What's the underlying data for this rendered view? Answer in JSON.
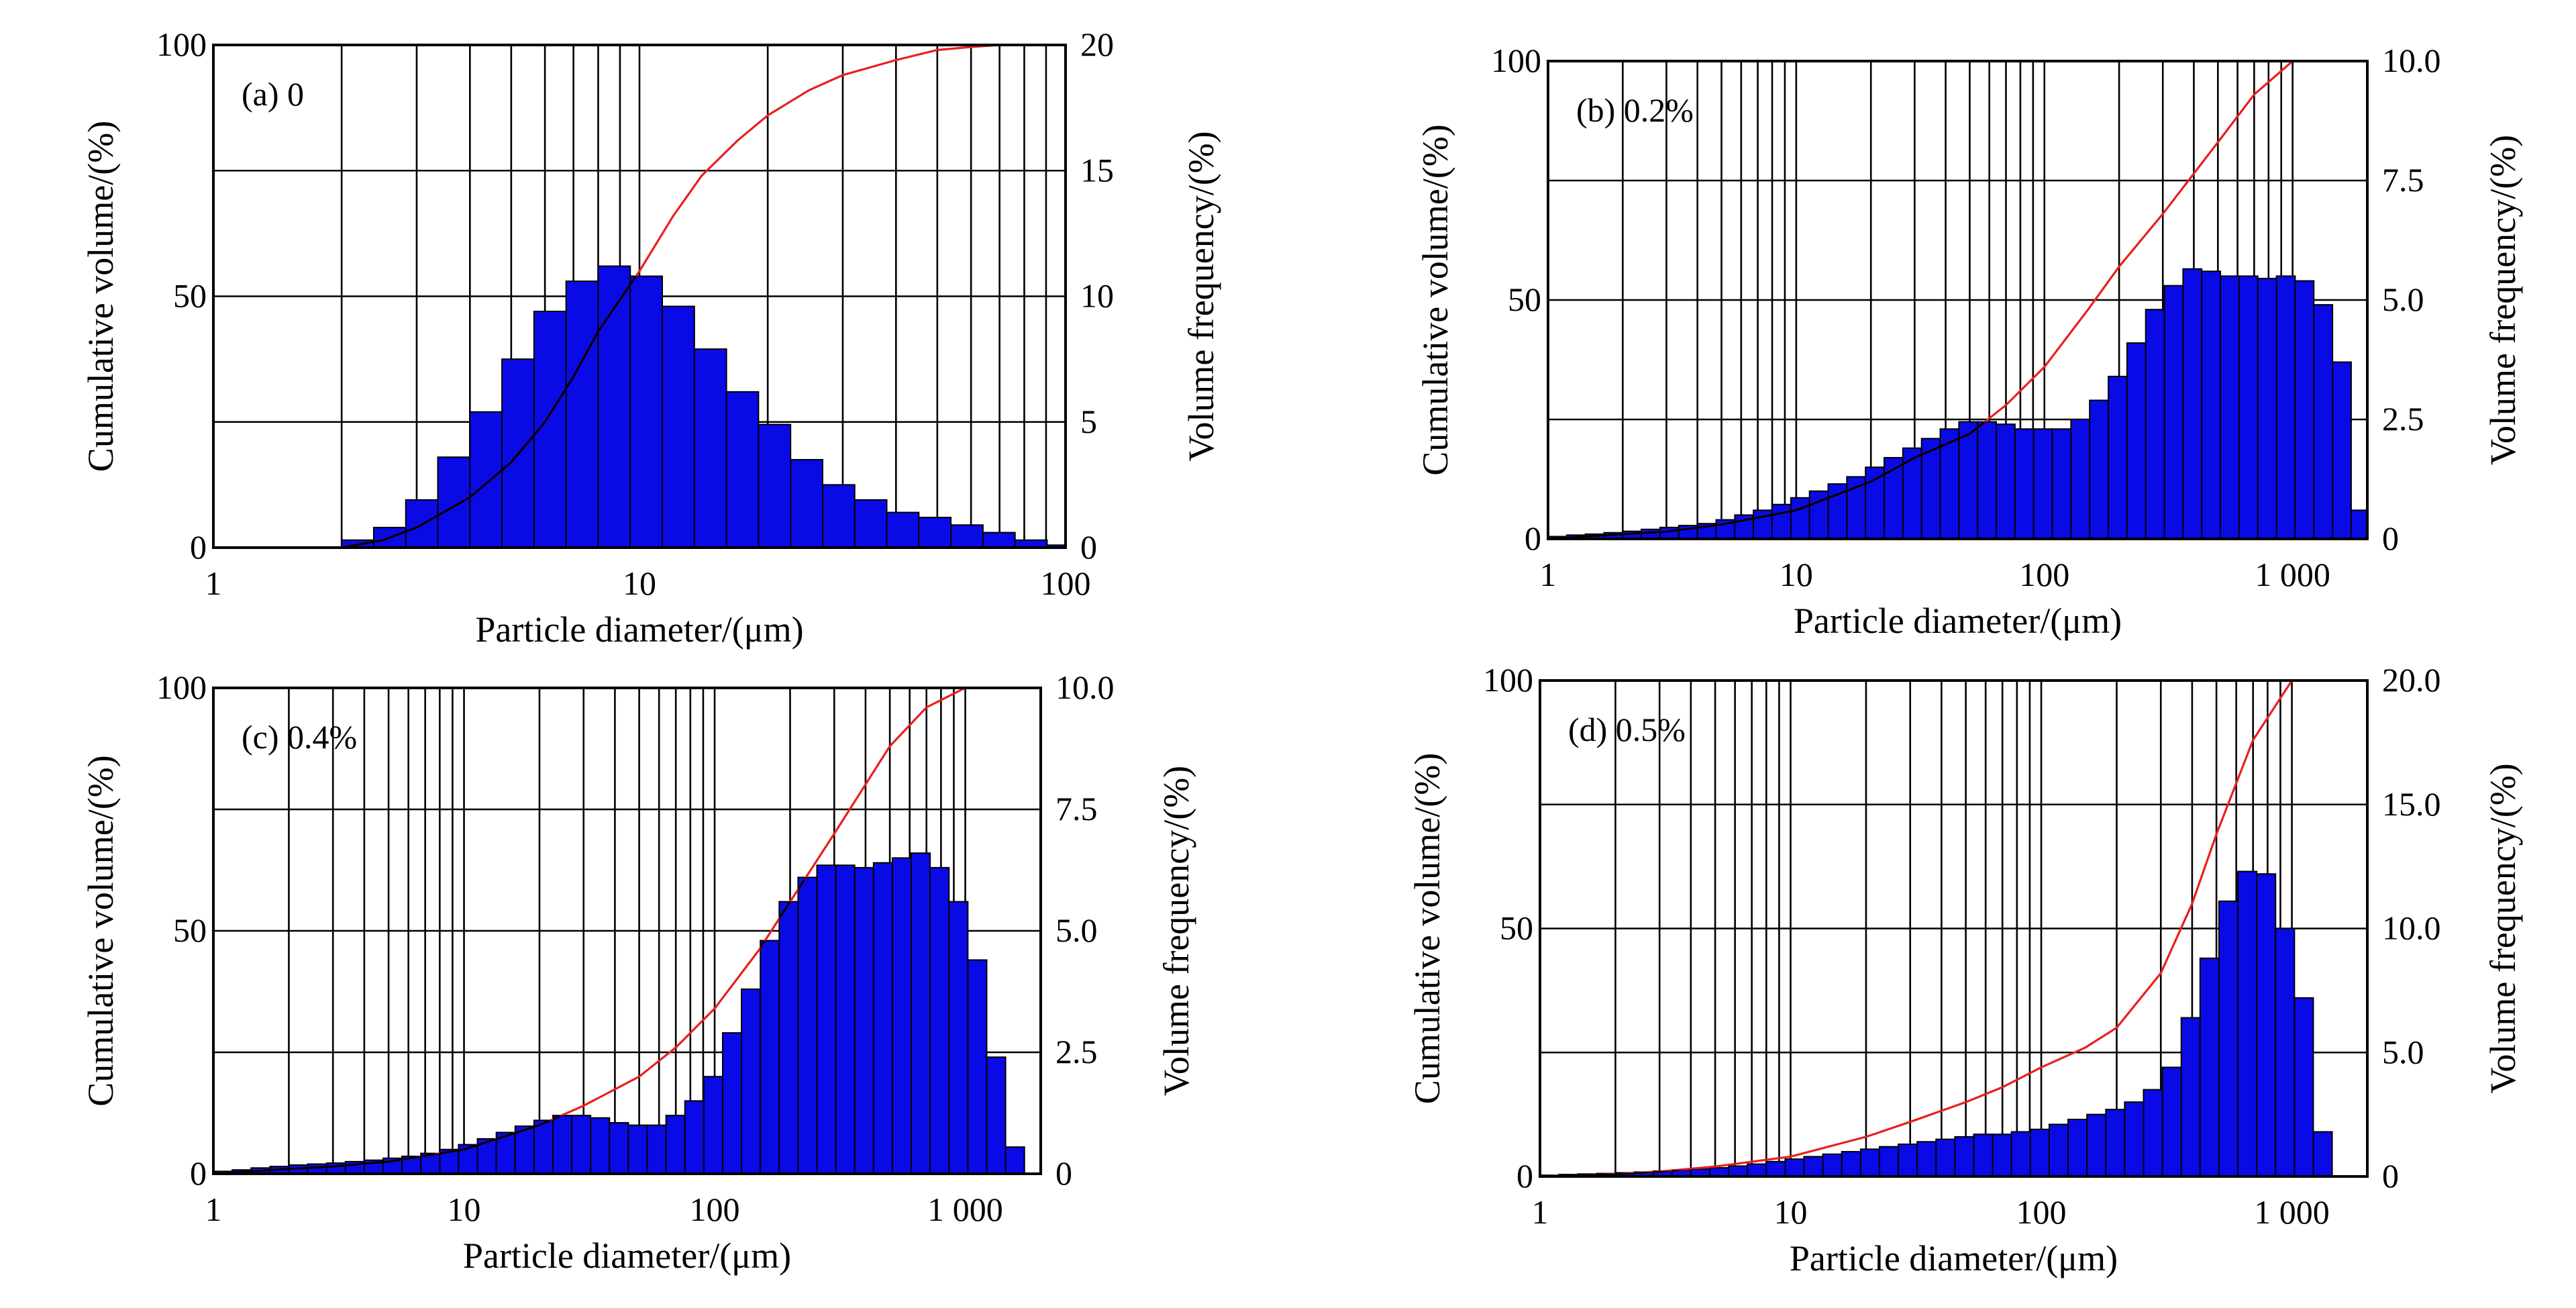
{
  "chart_data": [
    {
      "type": "bar",
      "panel_label": "(a) 0",
      "xlabel": "Particle diameter/(μm)",
      "ylabel_left": "Cumulative volume/(%)",
      "ylabel_right": "Volume frequency/(%)",
      "x_scale": "log",
      "xlim": [
        1,
        100
      ],
      "x_ticks": [
        1,
        10,
        100
      ],
      "x_tick_labels": [
        "1",
        "10",
        "100"
      ],
      "y_left_lim": [
        0,
        100
      ],
      "y_left_ticks": [
        0,
        50,
        100
      ],
      "y_left_tick_labels": [
        "0",
        "50",
        "100"
      ],
      "y_right_lim": [
        0,
        20
      ],
      "y_right_ticks": [
        0,
        5,
        10,
        15,
        20
      ],
      "y_right_tick_labels": [
        "0",
        "5",
        "10",
        "15",
        "20"
      ],
      "grid": true,
      "bin_start": 2.0,
      "bin_ratio": 1.1892,
      "series": [
        {
          "name": "Volume frequency (%)",
          "axis": "right",
          "values": [
            0.3,
            0.8,
            1.9,
            3.6,
            5.4,
            7.5,
            9.4,
            10.6,
            11.2,
            10.8,
            9.6,
            7.9,
            6.2,
            4.9,
            3.5,
            2.5,
            1.9,
            1.4,
            1.2,
            0.9,
            0.6,
            0.3,
            0.1
          ]
        },
        {
          "name": "Cumulative volume (%)",
          "axis": "left",
          "x": [
            1,
            2,
            2.5,
            3,
            4,
            5,
            6,
            7,
            8,
            10,
            12,
            14,
            17,
            20,
            25,
            30,
            40,
            50,
            60,
            70,
            100
          ],
          "values": [
            0,
            0,
            1.5,
            4,
            10,
            17,
            25,
            34,
            43,
            55,
            66,
            74,
            81,
            86,
            91,
            94,
            97,
            99,
            99.6,
            100,
            100
          ]
        }
      ]
    },
    {
      "type": "bar",
      "panel_label": "(b) 0.2%",
      "xlabel": "Particle diameter/(μm)",
      "ylabel_left": "Cumulative volume/(%)",
      "ylabel_right": "Volume frequency/(%)",
      "x_scale": "log",
      "xlim": [
        1,
        2000
      ],
      "x_ticks": [
        1,
        10,
        100,
        1000
      ],
      "x_tick_labels": [
        "1",
        "10",
        "100",
        "1 000"
      ],
      "y_left_lim": [
        0,
        100
      ],
      "y_left_ticks": [
        0,
        50,
        100
      ],
      "y_left_tick_labels": [
        "0",
        "50",
        "100"
      ],
      "y_right_lim": [
        0,
        10
      ],
      "y_right_ticks": [
        0,
        2.5,
        5,
        7.5,
        10
      ],
      "y_right_tick_labels": [
        "0",
        "2.5",
        "5.0",
        "7.5",
        "10.0"
      ],
      "grid": true,
      "bin_start": 1.0,
      "bin_ratio": 1.1892,
      "series": [
        {
          "name": "Volume frequency (%)",
          "axis": "right",
          "values": [
            0.05,
            0.08,
            0.1,
            0.13,
            0.16,
            0.2,
            0.24,
            0.28,
            0.32,
            0.4,
            0.5,
            0.6,
            0.72,
            0.86,
            1.0,
            1.15,
            1.3,
            1.5,
            1.7,
            1.9,
            2.1,
            2.3,
            2.45,
            2.45,
            2.4,
            2.3,
            2.3,
            2.3,
            2.5,
            2.9,
            3.4,
            4.1,
            4.8,
            5.3,
            5.65,
            5.6,
            5.5,
            5.5,
            5.45,
            5.5,
            5.4,
            4.9,
            3.7,
            0.6
          ]
        },
        {
          "name": "Cumulative volume (%)",
          "axis": "left",
          "x": [
            1,
            2,
            3,
            5,
            10,
            20,
            30,
            50,
            70,
            100,
            150,
            200,
            300,
            500,
            700,
            1000,
            2000
          ],
          "values": [
            0,
            1,
            1.5,
            3,
            6,
            12,
            17,
            22,
            28,
            36,
            48,
            57,
            68,
            83,
            93,
            100,
            100
          ]
        }
      ]
    },
    {
      "type": "bar",
      "panel_label": "(c) 0.4%",
      "xlabel": "Particle diameter/(μm)",
      "ylabel_left": "Cumulative volume/(%)",
      "ylabel_right": "Volume frequency/(%)",
      "x_scale": "log",
      "xlim": [
        1,
        2000
      ],
      "x_ticks": [
        1,
        10,
        100,
        1000
      ],
      "x_tick_labels": [
        "1",
        "10",
        "100",
        "1 000"
      ],
      "y_left_lim": [
        0,
        100
      ],
      "y_left_ticks": [
        0,
        50,
        100
      ],
      "y_left_tick_labels": [
        "0",
        "50",
        "100"
      ],
      "y_right_lim": [
        0,
        10
      ],
      "y_right_ticks": [
        0,
        2.5,
        5,
        7.5,
        10
      ],
      "y_right_tick_labels": [
        "0",
        "2.5",
        "5.0",
        "7.5",
        "10.0"
      ],
      "grid": true,
      "bin_start": 1.0,
      "bin_ratio": 1.1892,
      "series": [
        {
          "name": "Volume frequency (%)",
          "axis": "right",
          "values": [
            0.05,
            0.08,
            0.12,
            0.15,
            0.18,
            0.2,
            0.22,
            0.25,
            0.28,
            0.32,
            0.36,
            0.42,
            0.5,
            0.6,
            0.72,
            0.85,
            0.98,
            1.1,
            1.2,
            1.2,
            1.15,
            1.05,
            1.0,
            1.0,
            1.2,
            1.5,
            2.0,
            2.9,
            3.8,
            4.8,
            5.6,
            6.1,
            6.35,
            6.35,
            6.3,
            6.4,
            6.5,
            6.6,
            6.3,
            5.6,
            4.4,
            2.4,
            0.55
          ]
        },
        {
          "name": "Cumulative volume (%)",
          "axis": "left",
          "x": [
            1,
            2,
            3,
            5,
            10,
            20,
            30,
            50,
            70,
            100,
            150,
            200,
            300,
            500,
            700,
            1000,
            2000
          ],
          "values": [
            0,
            1,
            1.5,
            2.5,
            5,
            10,
            14,
            20,
            26,
            34,
            46,
            56,
            70,
            88,
            96,
            100,
            100
          ]
        }
      ]
    },
    {
      "type": "bar",
      "panel_label": "(d) 0.5%",
      "xlabel": "Particle diameter/(μm)",
      "ylabel_left": "Cumulative volume/(%)",
      "ylabel_right": "Volume frequency/(%)",
      "x_scale": "log",
      "xlim": [
        1,
        2000
      ],
      "x_ticks": [
        1,
        10,
        100,
        1000
      ],
      "x_tick_labels": [
        "1",
        "10",
        "100",
        "1 000"
      ],
      "y_left_lim": [
        0,
        100
      ],
      "y_left_ticks": [
        0,
        50,
        100
      ],
      "y_left_tick_labels": [
        "0",
        "50",
        "100"
      ],
      "y_right_lim": [
        0,
        20
      ],
      "y_right_ticks": [
        0,
        5,
        10,
        15,
        20
      ],
      "y_right_tick_labels": [
        "0",
        "5.0",
        "10.0",
        "15.0",
        "20.0"
      ],
      "grid": true,
      "bin_start": 1.0,
      "bin_ratio": 1.1892,
      "series": [
        {
          "name": "Volume frequency (%)",
          "axis": "right",
          "values": [
            0.05,
            0.08,
            0.1,
            0.12,
            0.15,
            0.18,
            0.22,
            0.26,
            0.3,
            0.35,
            0.42,
            0.5,
            0.6,
            0.7,
            0.8,
            0.9,
            1.0,
            1.1,
            1.2,
            1.3,
            1.4,
            1.5,
            1.6,
            1.7,
            1.7,
            1.8,
            1.9,
            2.1,
            2.3,
            2.5,
            2.7,
            3.0,
            3.5,
            4.4,
            6.4,
            8.8,
            11.1,
            12.3,
            12.2,
            10.0,
            7.2,
            1.8
          ]
        },
        {
          "name": "Cumulative volume (%)",
          "axis": "left",
          "x": [
            1,
            2,
            3,
            5,
            10,
            20,
            30,
            50,
            70,
            100,
            150,
            200,
            300,
            400,
            500,
            700,
            1000,
            2000
          ],
          "values": [
            0,
            0.5,
            1,
            2,
            4,
            8,
            11,
            15,
            18,
            22,
            26,
            30,
            41,
            55,
            69,
            88,
            100,
            100
          ]
        }
      ]
    }
  ]
}
